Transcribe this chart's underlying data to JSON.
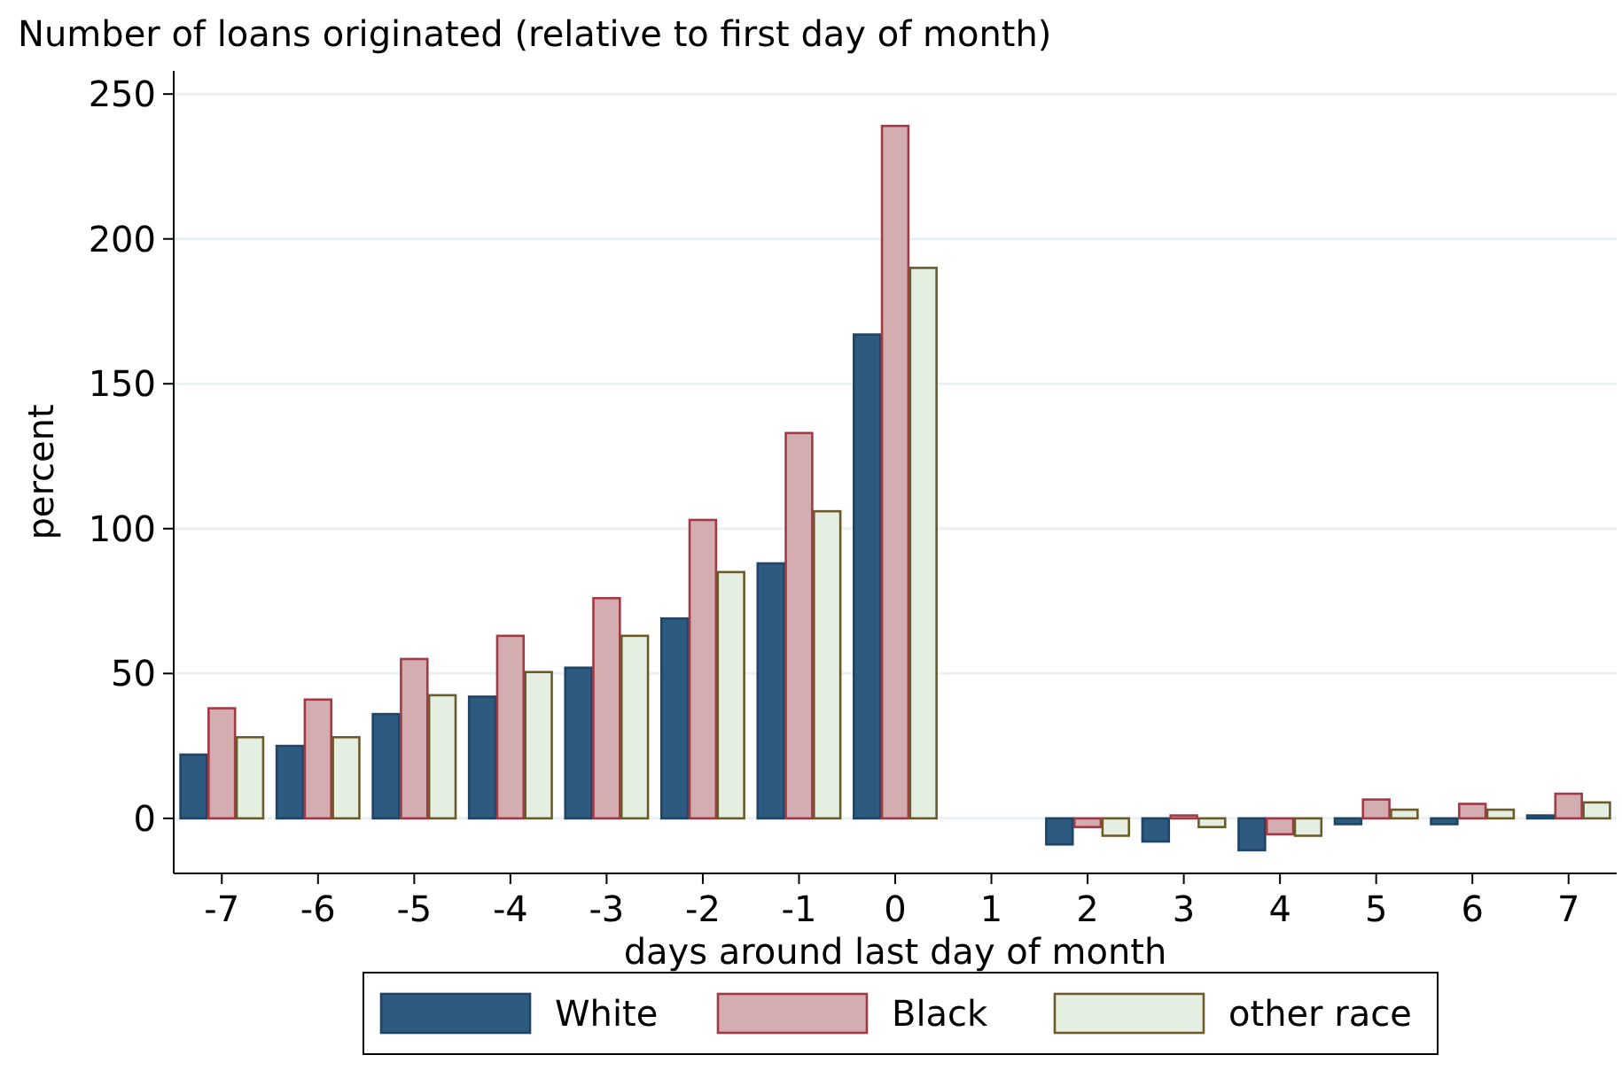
{
  "chart_data": {
    "type": "bar",
    "title": "Number of loans originated (relative to first day of month)",
    "xlabel": "days around last day of month",
    "ylabel": "percent",
    "categories": [
      "-7",
      "-6",
      "-5",
      "-4",
      "-3",
      "-2",
      "-1",
      "0",
      "1",
      "2",
      "3",
      "4",
      "5",
      "6",
      "7"
    ],
    "series": [
      {
        "name": "White",
        "color": "#2d5a7f",
        "values": [
          22,
          25,
          36,
          42,
          52,
          69,
          88,
          167,
          null,
          -9,
          -8,
          -11,
          -2,
          -2,
          1
        ]
      },
      {
        "name": "Black",
        "color": "#d4adb0",
        "values": [
          38,
          41,
          55,
          63,
          76,
          103,
          133,
          239,
          null,
          -3,
          1,
          -5.5,
          6.5,
          5,
          8.5
        ]
      },
      {
        "name": "other race",
        "color": "#e5efe1",
        "values": [
          28,
          28,
          42.5,
          50.5,
          63,
          85,
          106,
          190,
          null,
          -6,
          -3,
          -6,
          3,
          3,
          5.5
        ]
      }
    ],
    "ylim": [
      -19,
      258
    ],
    "yticks": [
      0,
      50,
      100,
      150,
      200,
      250
    ],
    "grid": "y",
    "legend": "bottom"
  }
}
